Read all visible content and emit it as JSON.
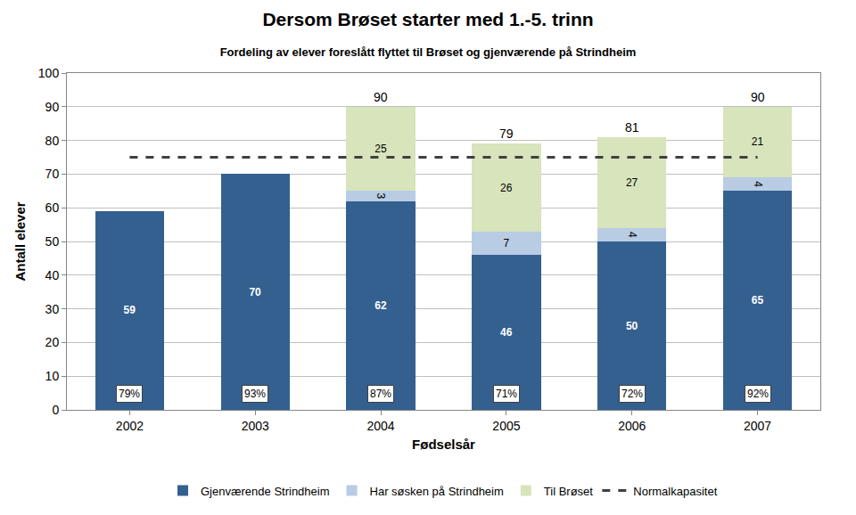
{
  "chart_data": {
    "type": "bar",
    "title": "Dersom Brøset starter med 1.-5. trinn",
    "subtitle": "Fordeling av elever foreslått flyttet til Brøset og gjenværende på Strindheim",
    "x_label": "Fødselsår",
    "y_label": "Antall elever",
    "categories": [
      "2002",
      "2003",
      "2004",
      "2005",
      "2006",
      "2007"
    ],
    "series": [
      {
        "name": "Gjenværende Strindheim",
        "color": "#34608f",
        "values": [
          59,
          70,
          62,
          46,
          50,
          65
        ]
      },
      {
        "name": "Har søsken på Strindheim",
        "color": "#b8cce4",
        "values": [
          null,
          null,
          3,
          7,
          4,
          4
        ]
      },
      {
        "name": "Til Brøset",
        "color": "#d7e4bc",
        "values": [
          null,
          null,
          25,
          26,
          27,
          21
        ]
      },
      {
        "name": "Normalkapasitet",
        "type": "line",
        "line_style": "dash",
        "color": "#404040",
        "values": [
          75,
          75,
          75,
          75,
          75,
          75
        ]
      }
    ],
    "totals": [
      null,
      null,
      90,
      79,
      81,
      90
    ],
    "shares": [
      79,
      93,
      87,
      71,
      72,
      92
    ],
    "share_labels": [
      "79%",
      "93%",
      "87%",
      "71%",
      "72%",
      "92%"
    ],
    "ylim": [
      0,
      100
    ],
    "yticks": [
      0,
      10,
      20,
      30,
      40,
      50,
      60,
      70,
      80,
      90,
      100
    ],
    "grid": true,
    "legend": "bottom",
    "stacked": true,
    "data_labels": true
  }
}
